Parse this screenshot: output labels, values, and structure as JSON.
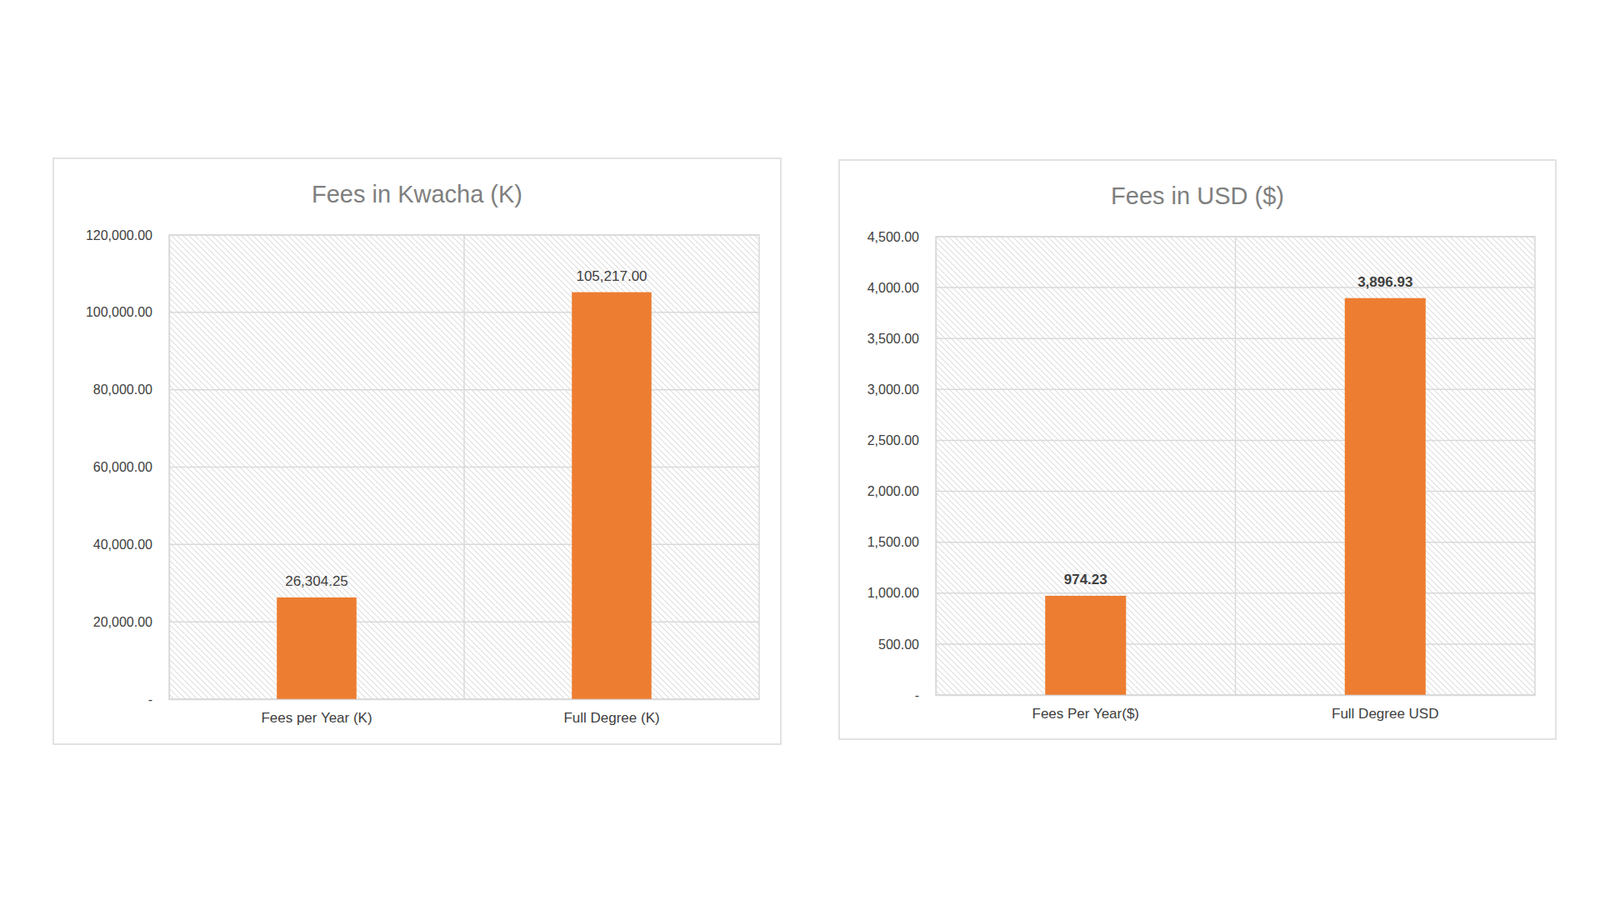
{
  "chart_data": [
    {
      "type": "bar",
      "title": "Fees in Kwacha (K)",
      "categories": [
        "Fees per Year (K)",
        "Full Degree (K)"
      ],
      "values": [
        26304.25,
        105217
      ],
      "value_labels": [
        "26,304.25",
        "105,217.00"
      ],
      "color": "#ed7d31",
      "ylim": [
        0,
        120000
      ],
      "yticks": [
        {
          "value": 0,
          "label": "-"
        },
        {
          "value": 20000,
          "label": "20,000.00"
        },
        {
          "value": 40000,
          "label": "40,000.00"
        },
        {
          "value": 60000,
          "label": "60,000.00"
        },
        {
          "value": 80000,
          "label": "80,000.00"
        },
        {
          "value": 100000,
          "label": "100,000.00"
        },
        {
          "value": 120000,
          "label": "120,000.00"
        }
      ],
      "grid": true,
      "data_labels": true
    },
    {
      "type": "bar",
      "title": "Fees in USD ($)",
      "categories": [
        "Fees Per Year($)",
        "Full Degree USD"
      ],
      "values": [
        974.23,
        3896.93
      ],
      "value_labels": [
        "974.23",
        "3,896.93"
      ],
      "color": "#ed7d31",
      "ylim": [
        0,
        4500
      ],
      "yticks": [
        {
          "value": 0,
          "label": "-"
        },
        {
          "value": 500,
          "label": "500.00"
        },
        {
          "value": 1000,
          "label": "1,000.00"
        },
        {
          "value": 1500,
          "label": "1,500.00"
        },
        {
          "value": 2000,
          "label": "2,000.00"
        },
        {
          "value": 2500,
          "label": "2,500.00"
        },
        {
          "value": 3000,
          "label": "3,000.00"
        },
        {
          "value": 3500,
          "label": "3,500.00"
        },
        {
          "value": 4000,
          "label": "4,000.00"
        },
        {
          "value": 4500,
          "label": "4,500.00"
        }
      ],
      "grid": true,
      "data_labels": true
    }
  ]
}
